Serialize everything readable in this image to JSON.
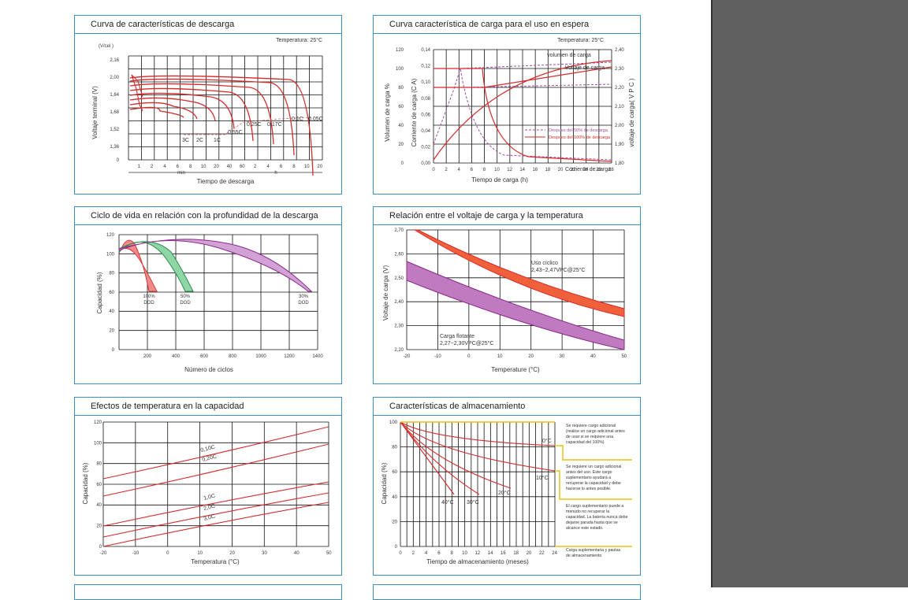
{
  "colors": {
    "accent_border": "#3a8fc4",
    "curve_red": "#d62a2a",
    "purple": "#9b3a9b",
    "green": "#2f9e4f",
    "gridline": "#111111",
    "sidebar": "#5f5f5f",
    "storage_note_line": "#e8c21a"
  },
  "panels": {
    "discharge": {
      "title": "Curva de características de descarga",
      "temp": "Temperatura: 25°C",
      "unit": "(V/cel )",
      "ylabel": "Voltaje terminal   (V)",
      "xlabel": "Tiempo de descarga",
      "min_label": "min",
      "h_label": "h",
      "yticks": [
        "2,16",
        "2,00",
        "1,84",
        "1,68",
        "1,52",
        "1,36",
        "0"
      ],
      "xticks": [
        "1",
        "2",
        "4",
        "6",
        "8",
        "10",
        "20",
        "40",
        "60",
        "2",
        "4",
        "6",
        "8",
        "10",
        "20"
      ],
      "curve_labels": [
        "3C",
        "2C",
        "1C",
        "0,55C",
        "0,25C",
        "0,17C",
        "0,1C",
        "0,05C"
      ]
    },
    "standby": {
      "title": "Curva característica de carga para el uso en espera",
      "temp": "Temperatura: 25°C",
      "ylabel1": "Volumen de carga   %",
      "ylabel2": "Corriente de carga   (C A)",
      "ylabel3": "voltaje de carga( V P C )",
      "xlabel": "Tiempo de carga (h)",
      "y1ticks": [
        "120",
        "100",
        "80",
        "60",
        "40",
        "20",
        "0"
      ],
      "y2ticks": [
        "0,14",
        "0,12",
        "0,10",
        "0,08",
        "0,06",
        "0,04",
        "0,02",
        "0,00"
      ],
      "y3ticks": [
        "2,40",
        "2,30",
        "2,20",
        "2,10",
        "2,00",
        "1,90",
        "1,80"
      ],
      "xticks": [
        "0",
        "2",
        "4",
        "6",
        "8",
        "10",
        "12",
        "14",
        "16",
        "18",
        "20",
        "22",
        "24",
        "26",
        "28"
      ],
      "labels": [
        "volumen de carga",
        "Voltaje de carga",
        "Corriente de carga"
      ],
      "legend": [
        "Despues del 50% de descarga",
        "Despues del 100% de descarga"
      ]
    },
    "cycle": {
      "title": "Ciclo de vida en relación con la profundidad de la descarga",
      "ylabel": "Capacidad (%)",
      "xlabel": "Número de ciclos",
      "yticks": [
        "120",
        "100",
        "80",
        "60",
        "40",
        "20",
        "0"
      ],
      "xticks": [
        "200",
        "400",
        "600",
        "800",
        "1000",
        "1200",
        "1400"
      ],
      "labels": [
        [
          "100%",
          "DOD"
        ],
        [
          "50%",
          "DOD"
        ],
        [
          "30%",
          "DOD"
        ]
      ]
    },
    "charge_temp": {
      "title": "Relación entre el voltaje de carga y la temperatura",
      "ylabel": "Voltaje de carga (V)",
      "xlabel": "Temperature (°C)",
      "yticks": [
        "2,70",
        "2,60",
        "2,50",
        "2,40",
        "2,30",
        "2,20"
      ],
      "xticks": [
        "-20",
        "-10",
        "0",
        "10",
        "20",
        "30",
        "40",
        "50"
      ],
      "cyclic": [
        "Uso cíclico",
        "2,43~2,47VPC@25°C"
      ],
      "float": [
        "Carga flotante",
        "2,27~2,30VPC@25°C"
      ]
    },
    "temp_capacity": {
      "title": "Efectos de temperatura en la capacidad",
      "ylabel": "Capacidad  (%)",
      "xlabel": "Temperatura (°C)",
      "yticks": [
        "120",
        "100",
        "80",
        "60",
        "40",
        "20",
        "0"
      ],
      "xticks": [
        "-20",
        "-10",
        "0",
        "10",
        "20",
        "30",
        "40",
        "50"
      ],
      "curve_labels": [
        "0,10C",
        "0,20C",
        "1,0C",
        "2,0C",
        "3,0C"
      ]
    },
    "storage": {
      "title": "Características de almacenamiento",
      "ylabel": "Capacidad (%)",
      "xlabel": "Tiempo de almacenamiento (meses)",
      "yticks": [
        "100",
        "80",
        "60",
        "40",
        "20",
        "0"
      ],
      "xticks": [
        "0",
        "2",
        "4",
        "6",
        "8",
        "10",
        "12",
        "14",
        "16",
        "18",
        "20",
        "22",
        "24"
      ],
      "curve_labels": [
        "0°C",
        "10°C",
        "20°C",
        "30°C",
        "40°C"
      ],
      "notes": [
        [
          "Se requiere cargo adicional",
          "(realice un cargo adicional antes",
          "de usar si se requiere una",
          "capacidad del 100%)"
        ],
        [
          "Se requiere un cargo adicional",
          "antes del uso. Este cargo",
          "suplementario ayudará a",
          "recuperar la capacidad y debe",
          "hacerse lo antes posible."
        ],
        [
          "El cargo suplementario puede a",
          "menudo no recuperar la",
          "capacidad. La batería nunca debe",
          "dejarse parada hasta que se",
          "alcance este estado."
        ],
        [
          "Carga suplementaria y pautas",
          "de almacenamiento"
        ]
      ]
    }
  }
}
